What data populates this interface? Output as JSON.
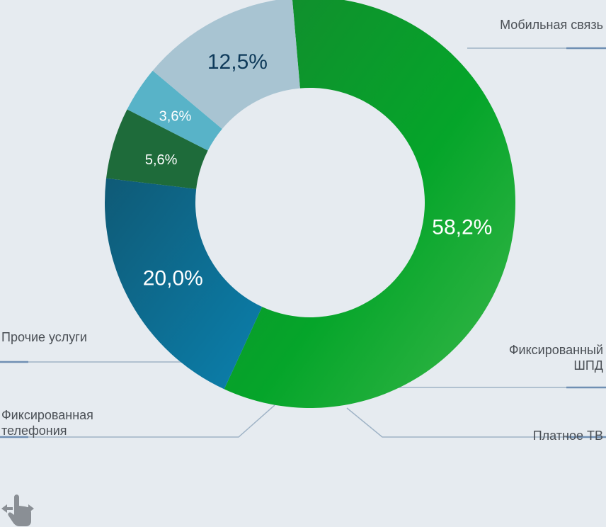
{
  "chart_data": {
    "type": "pie",
    "title": "",
    "categories": [
      "Мобильная связь",
      "Фиксированный ШПД",
      "Платное ТВ",
      "Фиксированная телефония",
      "Прочие услуги"
    ],
    "values": [
      58.2,
      20.0,
      5.6,
      3.6,
      12.5
    ],
    "value_labels": [
      "58,2%",
      "20,0%",
      "5,6%",
      "3,6%",
      "12,5%"
    ],
    "colors": [
      "#1fa83c",
      "#0b6f8e",
      "#1e6b3a",
      "#58b3c8",
      "#a8c4d2"
    ],
    "label_colors": [
      "#ffffff",
      "#ffffff",
      "#ffffff",
      "#ffffff",
      "#0e3a5a"
    ],
    "leader_color": "#9fb3c6",
    "leader_accent": "#6f8fb3"
  },
  "legend": {
    "mobile": "Мобильная связь",
    "broadband_line1": "Фиксированный",
    "broadband_line2": "ШПД",
    "paytv": "Платное ТВ",
    "fixed_phone_line1": "Фиксированная",
    "fixed_phone_line2": "телефония",
    "other": "Прочие услуги"
  },
  "icons": {
    "gesture": "swipe-gesture-icon"
  }
}
